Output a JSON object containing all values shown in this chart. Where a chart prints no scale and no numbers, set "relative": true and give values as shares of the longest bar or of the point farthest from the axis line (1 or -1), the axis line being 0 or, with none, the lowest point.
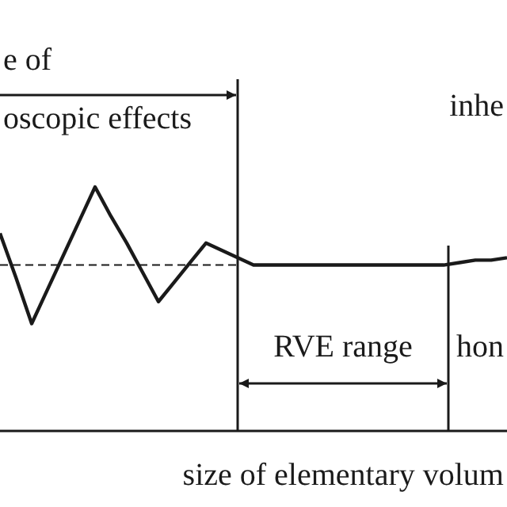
{
  "chart_data": {
    "type": "line",
    "relative": true,
    "categories": [
      null,
      null,
      null,
      null,
      null,
      null,
      null,
      null,
      null,
      null,
      null,
      null,
      null,
      null,
      null,
      null,
      null,
      null,
      null,
      null,
      null,
      null,
      null,
      null,
      null,
      null,
      null,
      null,
      null,
      null,
      null,
      null,
      null
    ],
    "series": [
      {
        "color": "#1a1a1a",
        "values": [
          0.81,
          0.63,
          0.44,
          0.58,
          0.72,
          0.86,
          1,
          0.88,
          0.77,
          0.65,
          0.53,
          0.61,
          0.69,
          0.77,
          0.74,
          0.71,
          0.68,
          0.68,
          0.68,
          0.68,
          0.68,
          0.68,
          0.68,
          0.68,
          0.68,
          0.68,
          0.68,
          0.68,
          0.68,
          0.69,
          0.7,
          0.7,
          0.71
        ]
      }
    ],
    "xlabel": "size of elementary volum",
    "ref_lines": [
      {
        "axis": "y",
        "value": 0.68,
        "line_style": "dashed"
      }
    ],
    "annotations": [
      "e of",
      "oscopic effects",
      "inhe",
      "RVE range",
      "hon"
    ]
  }
}
